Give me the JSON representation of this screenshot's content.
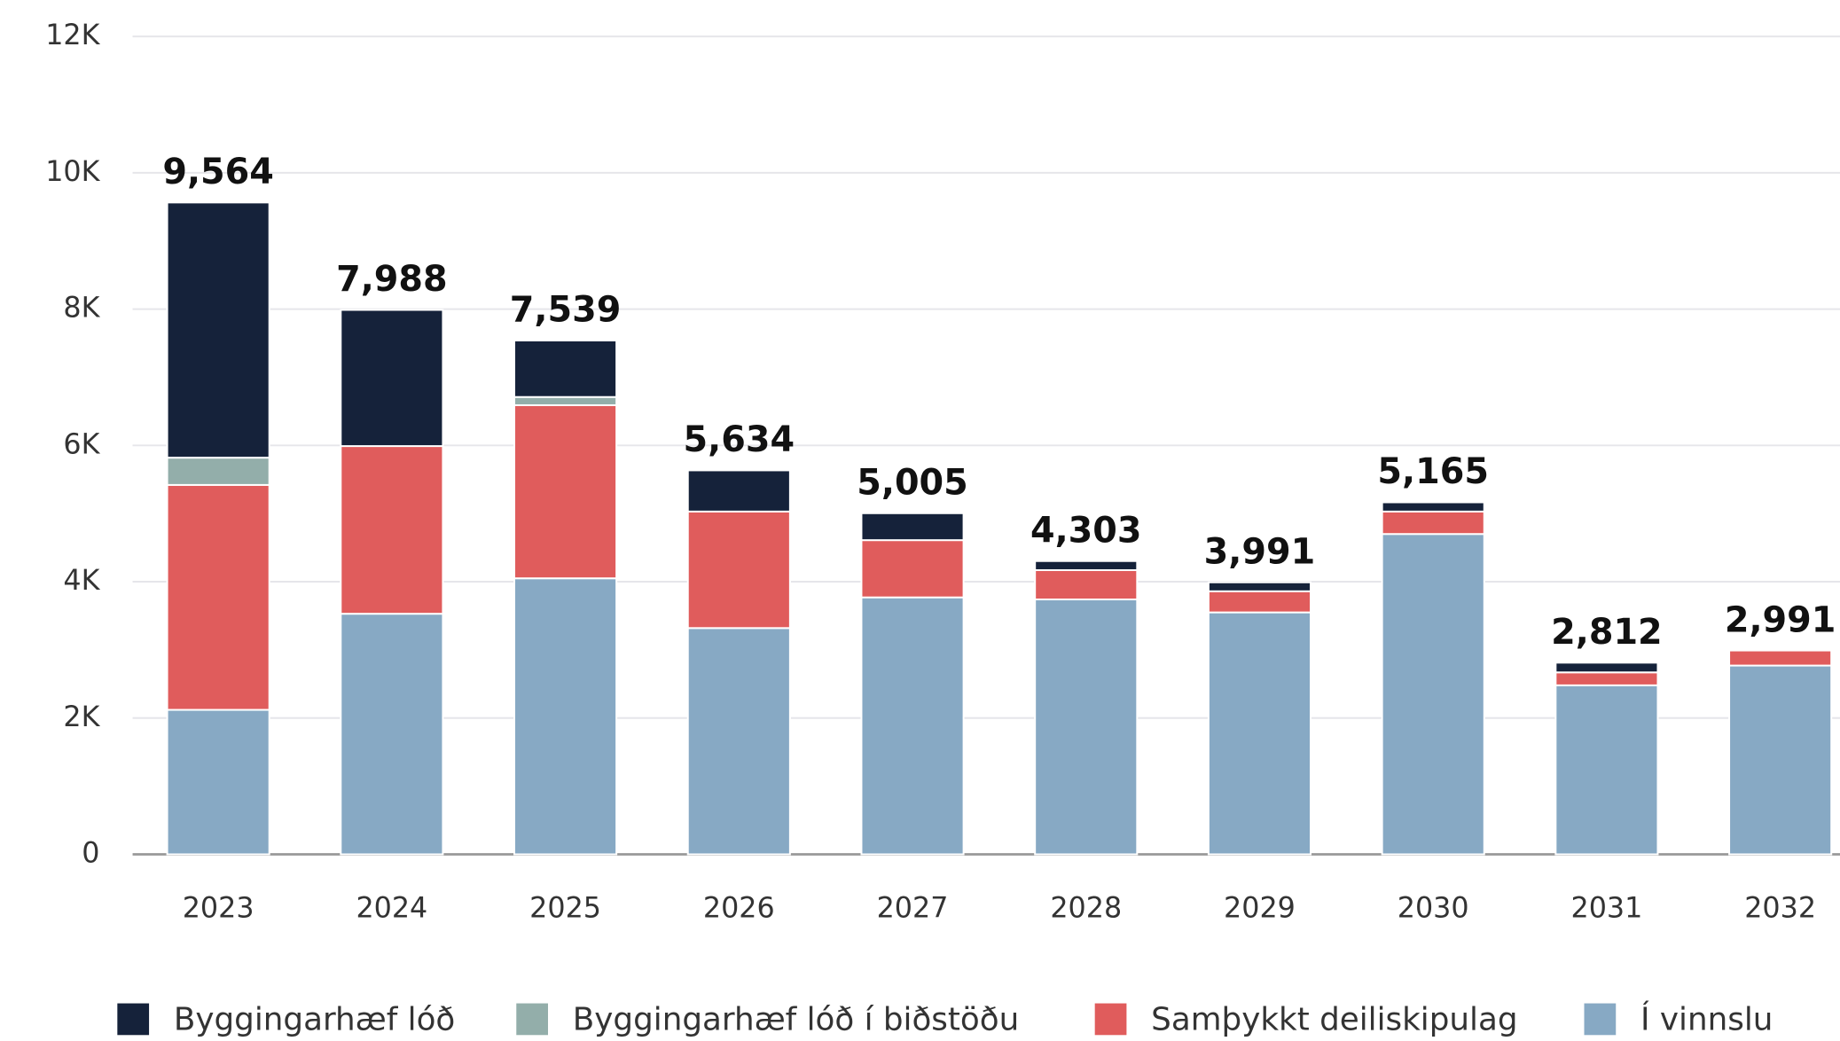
{
  "chart_data": {
    "type": "stacked_bar",
    "categories": [
      "2023",
      "2024",
      "2025",
      "2026",
      "2027",
      "2028",
      "2029",
      "2030",
      "2031",
      "2032"
    ],
    "series": [
      {
        "name": "Í vinnslu",
        "color": "#87a9c4",
        "values": [
          2120,
          3530,
          4050,
          3320,
          3770,
          3740,
          3550,
          4700,
          2480,
          2770
        ]
      },
      {
        "name": "Samþykkt deiliskipulag",
        "color": "#e05c5c",
        "values": [
          3300,
          2460,
          2540,
          1710,
          840,
          430,
          310,
          330,
          190,
          221
        ]
      },
      {
        "name": "Byggingarhæf lóð í biðstöðu",
        "color": "#93aeaa",
        "values": [
          400,
          0,
          120,
          0,
          0,
          0,
          0,
          0,
          0,
          0
        ]
      },
      {
        "name": "Byggingarhæf lóð",
        "color": "#15223a",
        "values": [
          3744,
          1998,
          829,
          604,
          395,
          133,
          131,
          135,
          142,
          0
        ]
      }
    ],
    "totals": [
      9564,
      7988,
      7539,
      5634,
      5005,
      4303,
      3991,
      5165,
      2812,
      2991
    ],
    "total_labels": [
      "9,564",
      "7,988",
      "7,539",
      "5,634",
      "5,005",
      "4,303",
      "3,991",
      "5,165",
      "2,812",
      "2,991"
    ],
    "legend_order": [
      3,
      2,
      1,
      0
    ],
    "ylim": [
      0,
      12000
    ],
    "yticks": [
      0,
      {
        "value": 2000,
        "label": "2K"
      },
      {
        "value": 4000,
        "label": "4K"
      },
      {
        "value": 6000,
        "label": "6K"
      },
      {
        "value": 8000,
        "label": "8K"
      },
      {
        "value": 10000,
        "label": "10K"
      },
      {
        "value": 12000,
        "label": "12K"
      }
    ],
    "grid": true
  }
}
